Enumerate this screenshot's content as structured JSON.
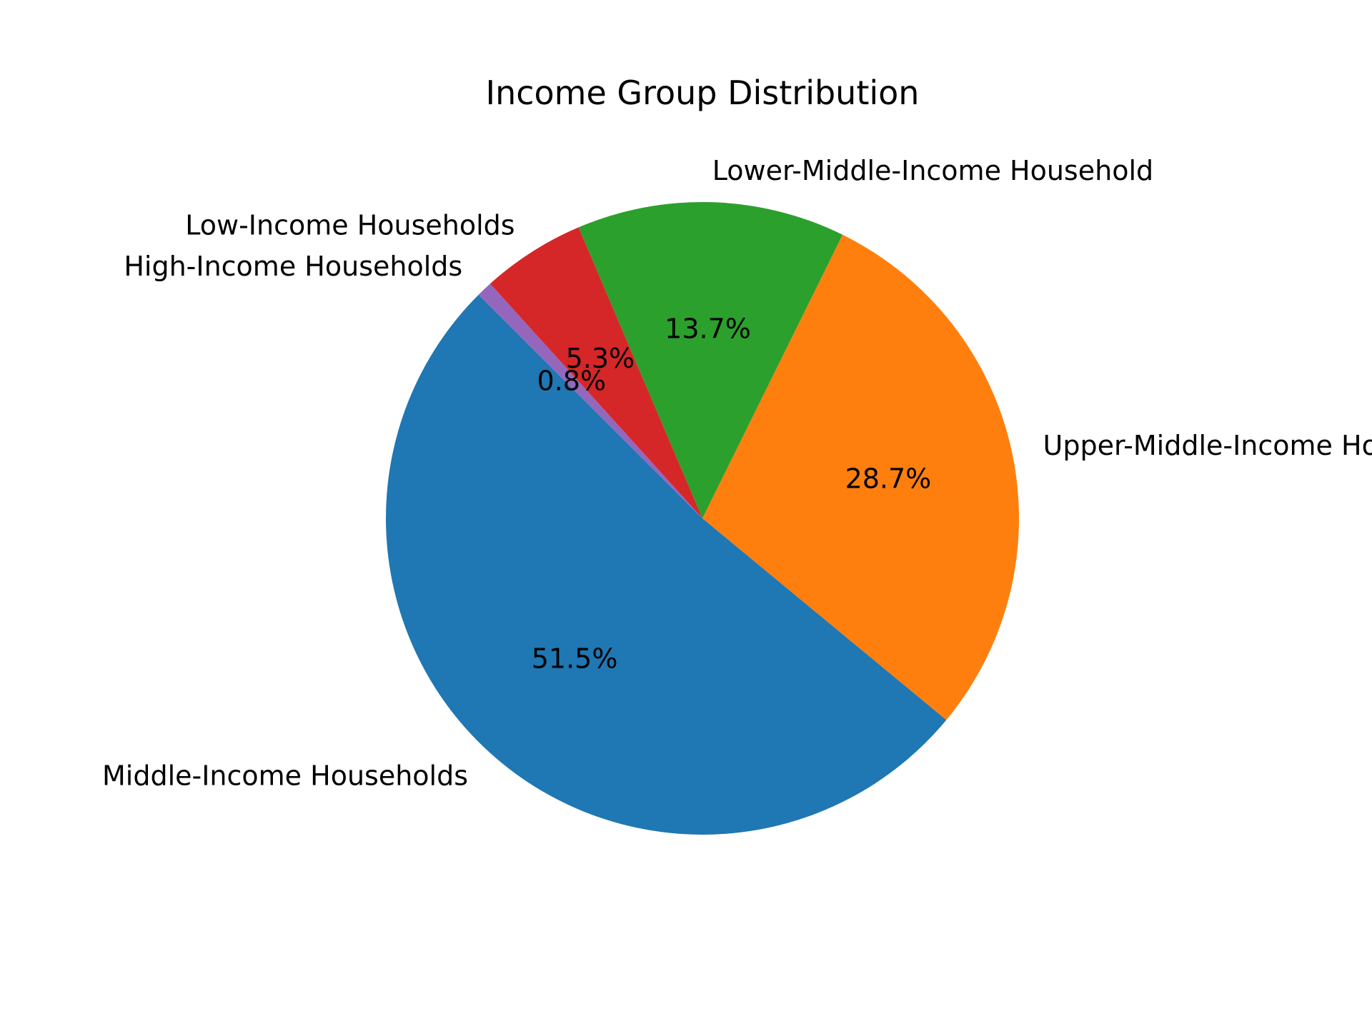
{
  "chart_data": {
    "type": "pie",
    "title": "Income Group Distribution",
    "start_angle_deg": 135,
    "direction": "counterclockwise",
    "slices": [
      {
        "label": "Middle-Income Households",
        "value": 51.5,
        "pct_label": "51.5%",
        "color": "#1f77b4"
      },
      {
        "label": "Upper-Middle-Income Households",
        "value": 28.7,
        "pct_label": "28.7%",
        "color": "#ff7f0e"
      },
      {
        "label": "Lower-Middle-Income Household",
        "value": 13.7,
        "pct_label": "13.7%",
        "color": "#2ca02c"
      },
      {
        "label": "Low-Income Households",
        "value": 5.3,
        "pct_label": "5.3%",
        "color": "#d62728"
      },
      {
        "label": "High-Income Households",
        "value": 0.8,
        "pct_label": "0.8%",
        "color": "#9467bd"
      }
    ]
  }
}
